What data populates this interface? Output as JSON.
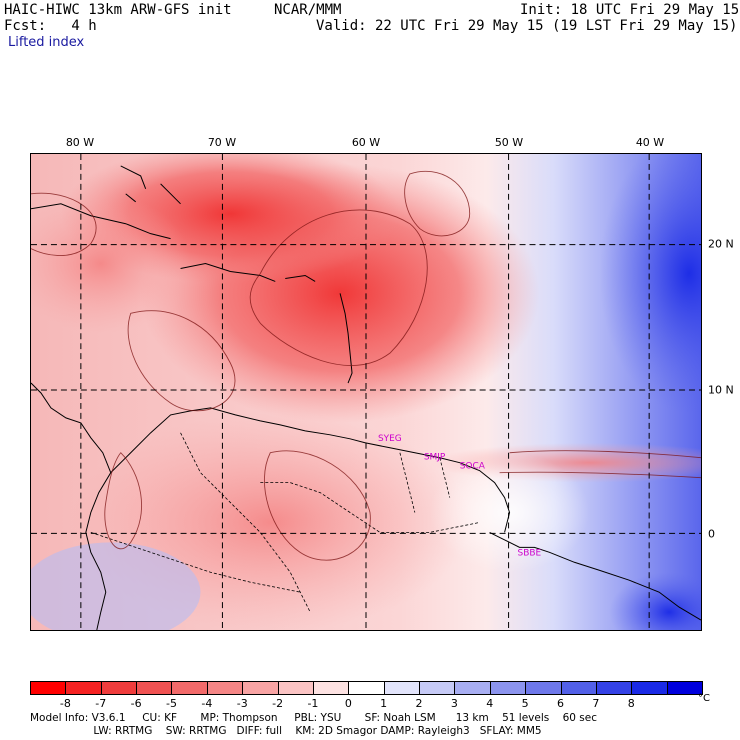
{
  "header": {
    "model": "HAIC-HIWC 13km ARW-GFS init",
    "org": "NCAR/MMM",
    "init": "Init: 18 UTC Fri 29 May 15",
    "fcst": "Fcst:   4 h",
    "valid": "Valid: 22 UTC Fri 29 May 15 (19 LST Fri 29 May 15)",
    "field": "Lifted index"
  },
  "map": {
    "lon_labels": [
      "80 W",
      "70 W",
      "60 W",
      "50 W",
      "40 W"
    ],
    "lat_labels": [
      "20 N",
      "10 N",
      "0"
    ],
    "stations": [
      "SYEG",
      "SMJP",
      "SOCA",
      "SBBE"
    ],
    "station_color": "#cc00cc"
  },
  "colorbar": {
    "labels": [
      "-8",
      "-7",
      "-6",
      "-5",
      "-4",
      "-3",
      "-2",
      "-1",
      "0",
      "1",
      "2",
      "3",
      "4",
      "5",
      "6",
      "7",
      "8"
    ],
    "unit": "°C",
    "colors": [
      "#ff0000",
      "#f52222",
      "#ef3c3c",
      "#f05252",
      "#f26a6a",
      "#f58686",
      "#f8a4a4",
      "#fbc4c4",
      "#fde2e2",
      "#ffffff",
      "#e2e4fb",
      "#c6caf6",
      "#a8aef2",
      "#8c94ee",
      "#6e78ea",
      "#5260e8",
      "#3442e6",
      "#1a2ae6",
      "#0000dd"
    ]
  },
  "footer": {
    "line1": "Model Info: V3.6.1     CU: KF       MP: Thompson     PBL: YSU       SF: Noah LSM      13 km    51 levels    60 sec",
    "line2": "                   LW: RRTMG    SW: RRTMG   DIFF: full    KM: 2D Smagor DAMP: Rayleigh3   SFLAY: MM5"
  }
}
